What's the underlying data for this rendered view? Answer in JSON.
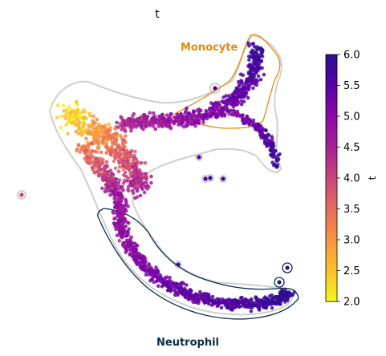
{
  "chart_data": {
    "type": "scatter",
    "title": "t",
    "colorbar": {
      "label": "t",
      "min": 2.0,
      "max": 6.0,
      "ticks": [
        "2.0",
        "2.5",
        "3.0",
        "3.5",
        "4.0",
        "4.5",
        "5.0",
        "5.5",
        "6.0"
      ],
      "colormap": "plasma_r"
    },
    "annotations": [
      {
        "text": "Monocyte",
        "color": "#e8890c"
      },
      {
        "text": "Neutrophil",
        "color": "#0b2d44"
      }
    ],
    "xlabel": "",
    "ylabel": "",
    "grid": false,
    "axes_visible": false
  }
}
